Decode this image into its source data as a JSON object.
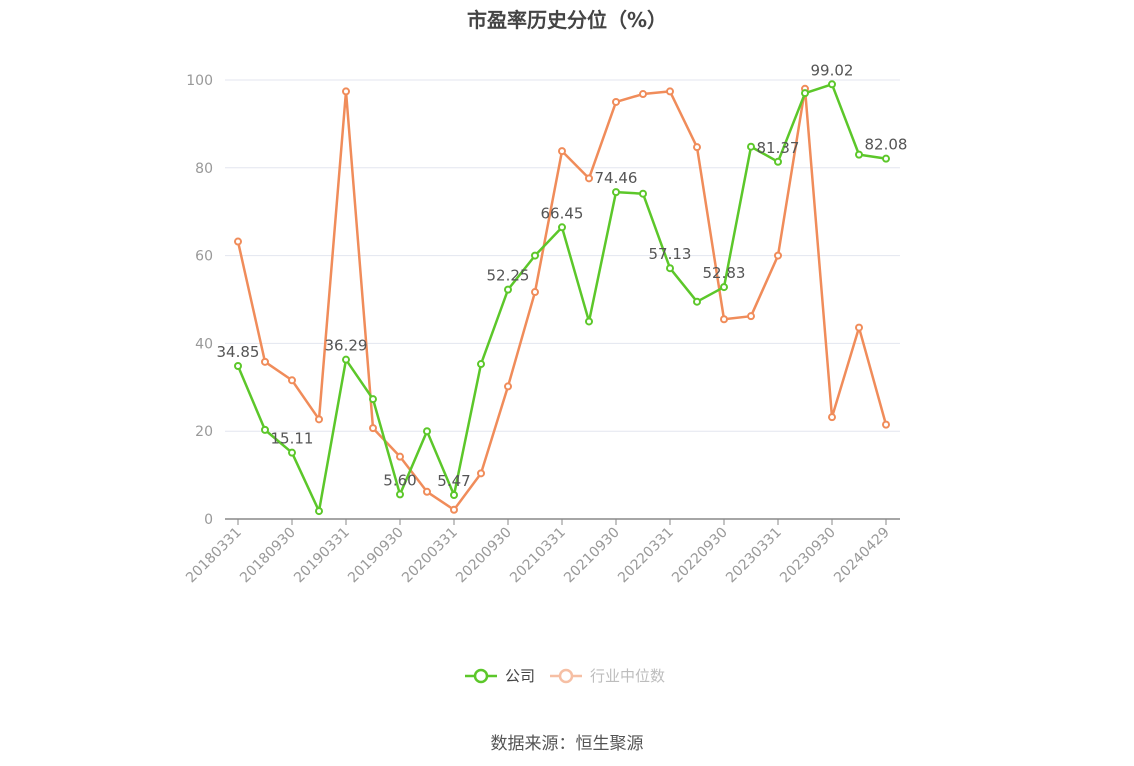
{
  "title": "市盈率历史分位（%）",
  "source": "数据来源：恒生聚源",
  "chart_data": {
    "type": "line",
    "title": "市盈率历史分位（%）",
    "ylim": [
      0,
      100
    ],
    "yticks": [
      0,
      20,
      40,
      60,
      80,
      100
    ],
    "grid": true,
    "legend_position": "bottom",
    "x": [
      "20180331",
      "20180630",
      "20180930",
      "20181231",
      "20190331",
      "20190630",
      "20190930",
      "20191231",
      "20200331",
      "20200630",
      "20200930",
      "20201231",
      "20210331",
      "20210630",
      "20210930",
      "20211231",
      "20220331",
      "20220630",
      "20220930",
      "20221231",
      "20230331",
      "20230630",
      "20230930",
      "20231231",
      "20240429"
    ],
    "xtick_labels": [
      "20180331",
      "20180930",
      "20190331",
      "20190930",
      "20200331",
      "20200930",
      "20210331",
      "20210930",
      "20220331",
      "20220930",
      "20230331",
      "20230930",
      "20240429"
    ],
    "xtick_indices": [
      0,
      2,
      4,
      6,
      8,
      10,
      12,
      14,
      16,
      18,
      20,
      22,
      24
    ],
    "series": [
      {
        "name": "公司",
        "color": "#5cc72a",
        "values": [
          34.85,
          20.3,
          15.11,
          1.8,
          36.29,
          27.3,
          5.6,
          20.0,
          5.47,
          35.3,
          52.25,
          60.0,
          66.45,
          45.0,
          74.46,
          74.1,
          57.13,
          49.5,
          52.83,
          84.8,
          81.37,
          97.0,
          99.02,
          83.0,
          82.08
        ],
        "labels": {
          "0": "34.85",
          "2": "15.11",
          "4": "36.29",
          "6": "5.60",
          "8": "5.47",
          "10": "52.25",
          "12": "66.45",
          "14": "74.46",
          "16": "57.13",
          "18": "52.83",
          "20": "81.37",
          "22": "99.02",
          "24": "82.08"
        }
      },
      {
        "name": "行业中位数",
        "color": "#f08c5a",
        "values": [
          63.2,
          35.8,
          31.6,
          22.7,
          97.4,
          20.7,
          14.2,
          6.2,
          2.1,
          10.4,
          30.2,
          51.7,
          83.8,
          77.6,
          95.0,
          96.8,
          97.4,
          84.7,
          45.5,
          46.2,
          60.0,
          98.0,
          23.2,
          43.6,
          21.5
        ]
      }
    ]
  }
}
